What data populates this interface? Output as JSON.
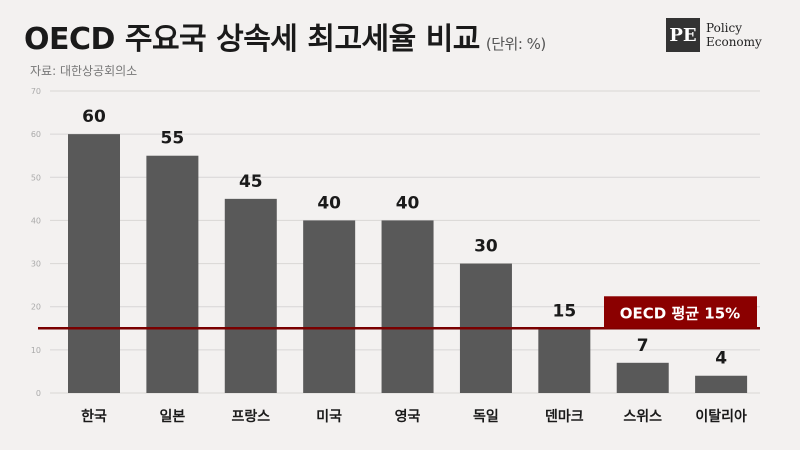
{
  "header": {
    "title": "OECD 주요국 상속세 최고세율 비교",
    "unit": "(단위: %)",
    "source": "자료: 대한상공회의소"
  },
  "logo": {
    "mark": "PE",
    "line1": "Policy",
    "line2": "Economy"
  },
  "colors": {
    "bar": "#595959",
    "average_line": "#7a0000",
    "average_label_bg": "#8b0000",
    "background": "#f3f1f0"
  },
  "chart_data": {
    "type": "bar",
    "title": "OECD 주요국 상속세 최고세율 비교",
    "categories": [
      "한국",
      "일본",
      "프랑스",
      "미국",
      "영국",
      "독일",
      "덴마크",
      "스위스",
      "이탈리아"
    ],
    "values": [
      60,
      55,
      45,
      40,
      40,
      30,
      15,
      7,
      4
    ],
    "ylim": [
      0,
      70
    ],
    "yticks": [
      "0",
      "10",
      "20",
      "30",
      "40",
      "50",
      "60",
      "70"
    ],
    "grid": true,
    "reference_line": {
      "value": 15,
      "label": "OECD 평균 15%"
    }
  }
}
